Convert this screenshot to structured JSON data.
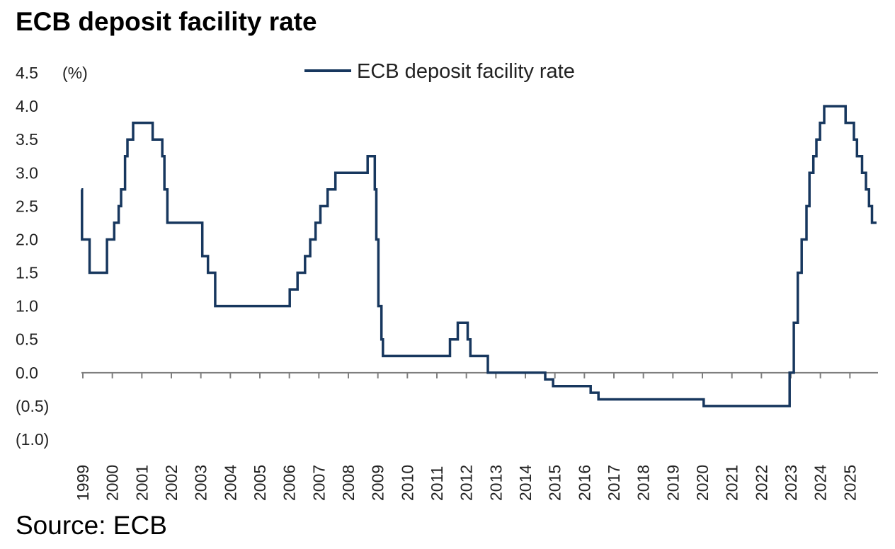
{
  "title": "ECB deposit facility rate",
  "source": "Source: ECB",
  "chart_data": {
    "type": "line",
    "y_unit_label": "(%)",
    "ylim": [
      -1.0,
      4.5
    ],
    "y_ticks": [
      {
        "value": 4.5,
        "label": "4.5"
      },
      {
        "value": 4.0,
        "label": "4.0"
      },
      {
        "value": 3.5,
        "label": "3.5"
      },
      {
        "value": 3.0,
        "label": "3.0"
      },
      {
        "value": 2.5,
        "label": "2.5"
      },
      {
        "value": 2.0,
        "label": "2.0"
      },
      {
        "value": 1.5,
        "label": "1.5"
      },
      {
        "value": 1.0,
        "label": "1.0"
      },
      {
        "value": 0.5,
        "label": "0.5"
      },
      {
        "value": 0.0,
        "label": "0.0"
      },
      {
        "value": -0.5,
        "label": "(0.5)"
      },
      {
        "value": -1.0,
        "label": "(1.0)"
      }
    ],
    "x_ticks": [
      "1999",
      "2000",
      "2001",
      "2002",
      "2003",
      "2004",
      "2005",
      "2006",
      "2007",
      "2008",
      "2009",
      "2010",
      "2011",
      "2012",
      "2013",
      "2014",
      "2015",
      "2016",
      "2017",
      "2018",
      "2019",
      "2020",
      "2021",
      "2022",
      "2023",
      "2024",
      "2025"
    ],
    "xlim": [
      1999.0,
      2025.5
    ],
    "grid": false,
    "legend_position": "top-center",
    "series": [
      {
        "name": "ECB deposit facility rate",
        "color": "#17375e",
        "step": true,
        "x": [
          1999.0,
          1999.02,
          1999.27,
          1999.85,
          2000.09,
          2000.24,
          2000.32,
          2000.45,
          2000.53,
          2000.72,
          2000.85,
          2001.37,
          2001.69,
          2001.76,
          2001.86,
          2003.02,
          2003.21,
          2003.45,
          2005.93,
          2006.19,
          2006.44,
          2006.61,
          2006.79,
          2006.95,
          2007.19,
          2007.45,
          2008.52,
          2008.76,
          2008.81,
          2008.88,
          2008.98,
          2009.03,
          2009.21,
          2009.26,
          2009.35,
          2011.26,
          2011.52,
          2011.85,
          2011.94,
          2012.52,
          2013.86,
          2014.43,
          2014.69,
          2015.94,
          2016.2,
          2019.7,
          2022.56,
          2022.7,
          2022.83,
          2022.96,
          2023.12,
          2023.22,
          2023.35,
          2023.45,
          2023.57,
          2023.71,
          2024.42,
          2024.7,
          2024.8,
          2024.97,
          2025.1,
          2025.2,
          2025.3,
          2025.45
        ],
        "y": [
          2.75,
          2.0,
          1.5,
          2.0,
          2.25,
          2.5,
          2.75,
          3.25,
          3.5,
          3.75,
          3.75,
          3.5,
          3.25,
          2.75,
          2.25,
          1.75,
          1.5,
          1.0,
          1.25,
          1.5,
          1.75,
          2.0,
          2.25,
          2.5,
          2.75,
          3.0,
          3.25,
          2.75,
          2.0,
          1.0,
          0.5,
          0.25,
          0.25,
          0.25,
          0.25,
          0.5,
          0.75,
          0.5,
          0.25,
          0.0,
          0.0,
          -0.1,
          -0.2,
          -0.3,
          -0.4,
          -0.5,
          0.0,
          0.75,
          1.5,
          2.0,
          2.5,
          3.0,
          3.25,
          3.5,
          3.75,
          4.0,
          3.75,
          3.5,
          3.25,
          3.0,
          2.75,
          2.5,
          2.25,
          2.25
        ]
      }
    ]
  }
}
